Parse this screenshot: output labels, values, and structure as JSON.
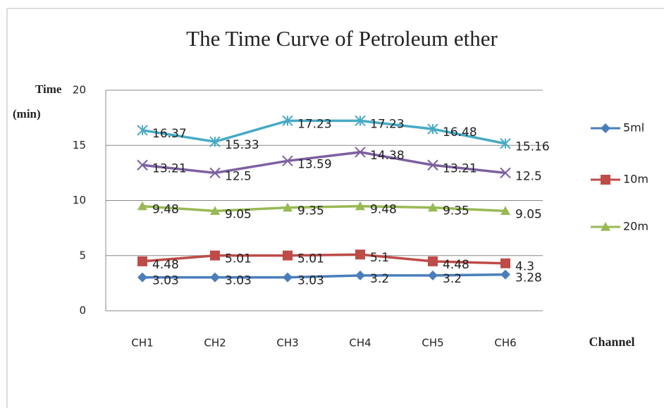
{
  "chart_data": {
    "type": "line",
    "title": "The Time Curve of Petroleum ether",
    "y_label_line1": "Time",
    "y_label_line2": "(min)",
    "x_label": "Channel",
    "categories": [
      "CH1",
      "CH2",
      "CH3",
      "CH4",
      "CH5",
      "CH6"
    ],
    "ylim": [
      0,
      20
    ],
    "yticks": [
      0,
      5,
      10,
      15,
      20
    ],
    "grid": true,
    "legend": "right",
    "series": [
      {
        "name": "5ml",
        "color": "#4a7ebb",
        "marker": "diamond",
        "values": [
          3.03,
          3.03,
          3.03,
          3.2,
          3.2,
          3.28
        ]
      },
      {
        "name": "10m",
        "color": "#be4b48",
        "marker": "square",
        "values": [
          4.48,
          5.01,
          5.01,
          5.1,
          4.48,
          4.3
        ]
      },
      {
        "name": "20m",
        "color": "#98b954",
        "marker": "triangle",
        "values": [
          9.48,
          9.05,
          9.35,
          9.48,
          9.35,
          9.05
        ]
      },
      {
        "color": "#7d60a0",
        "marker": "x",
        "values": [
          13.21,
          12.5,
          13.59,
          14.38,
          13.21,
          12.5
        ]
      },
      {
        "color": "#46aac5",
        "marker": "star",
        "values": [
          16.37,
          15.33,
          17.23,
          17.23,
          16.48,
          15.16
        ]
      }
    ]
  }
}
